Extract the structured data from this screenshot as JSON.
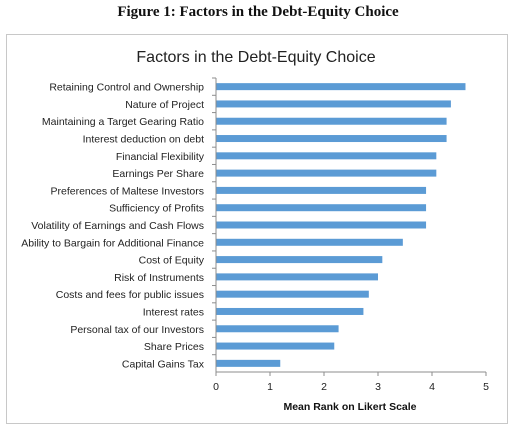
{
  "figure_caption": "Figure 1: Factors in the Debt-Equity Choice",
  "chart_data": {
    "type": "bar",
    "orientation": "horizontal",
    "title": "Factors in the Debt-Equity Choice",
    "xlabel": "Mean Rank on Likert Scale",
    "ylabel": "",
    "xlim": [
      0,
      5
    ],
    "xticks": [
      "0",
      "1",
      "2",
      "3",
      "4",
      "5"
    ],
    "categories": [
      "Retaining Control and Ownership",
      "Nature of Project",
      "Maintaining a Target Gearing Ratio",
      "Interest deduction on debt",
      "Financial Flexibility",
      "Earnings Per Share",
      "Preferences of Maltese Investors",
      "Sufficiency of Profits",
      "Volatility of Earnings and Cash Flows",
      "Ability to Bargain for Additional Finance",
      "Cost of Equity",
      "Risk of Instruments",
      "Costs and fees for public issues",
      "Interest rates",
      "Personal tax of our Investors",
      "Share Prices",
      "Capital Gains Tax"
    ],
    "values": [
      4.62,
      4.35,
      4.27,
      4.27,
      4.08,
      4.08,
      3.89,
      3.89,
      3.89,
      3.46,
      3.08,
      3.0,
      2.83,
      2.73,
      2.27,
      2.19,
      1.19
    ],
    "bar_color": "#5b9bd5",
    "grid": false,
    "legend": "none"
  }
}
